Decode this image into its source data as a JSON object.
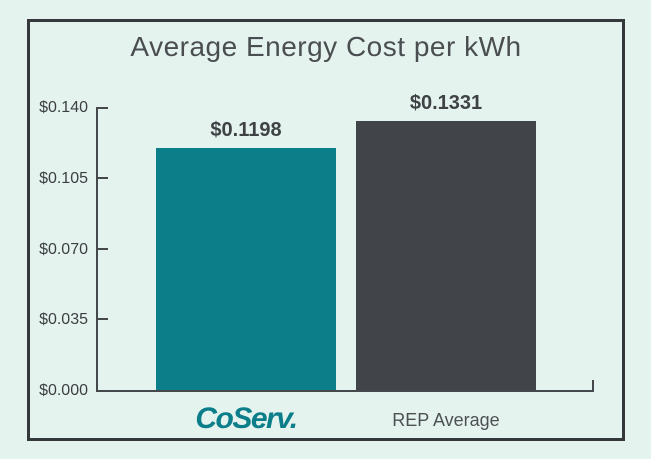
{
  "theme": {
    "bg": "#e5f3ef",
    "border": "#35383a",
    "axis": "#46494c",
    "title": "#4a4e50",
    "tick_text": "#3c3f41",
    "value_text": "#3e4245"
  },
  "chart_data": {
    "type": "bar",
    "title": "Average Energy Cost per kWh",
    "categories": [
      "CoServ",
      "REP Average"
    ],
    "values": [
      0.1198,
      0.1331
    ],
    "value_labels": [
      "$0.1198",
      "$0.1331"
    ],
    "bar_colors": [
      "#0b7e8a",
      "#414449"
    ],
    "ylim": [
      0,
      0.14
    ],
    "yticks": [
      0,
      0.035,
      0.07,
      0.105,
      0.14
    ],
    "ytick_labels": [
      "$0.000",
      "$0.035",
      "$0.070",
      "$0.105",
      "$0.140"
    ],
    "grid": false,
    "legend": "none",
    "x_axis_labels": [
      {
        "style": "logo",
        "text": "CoServ.",
        "color": "#0b7e8a"
      },
      {
        "style": "plain",
        "text": "REP Average",
        "color": "#4d5154"
      }
    ]
  }
}
